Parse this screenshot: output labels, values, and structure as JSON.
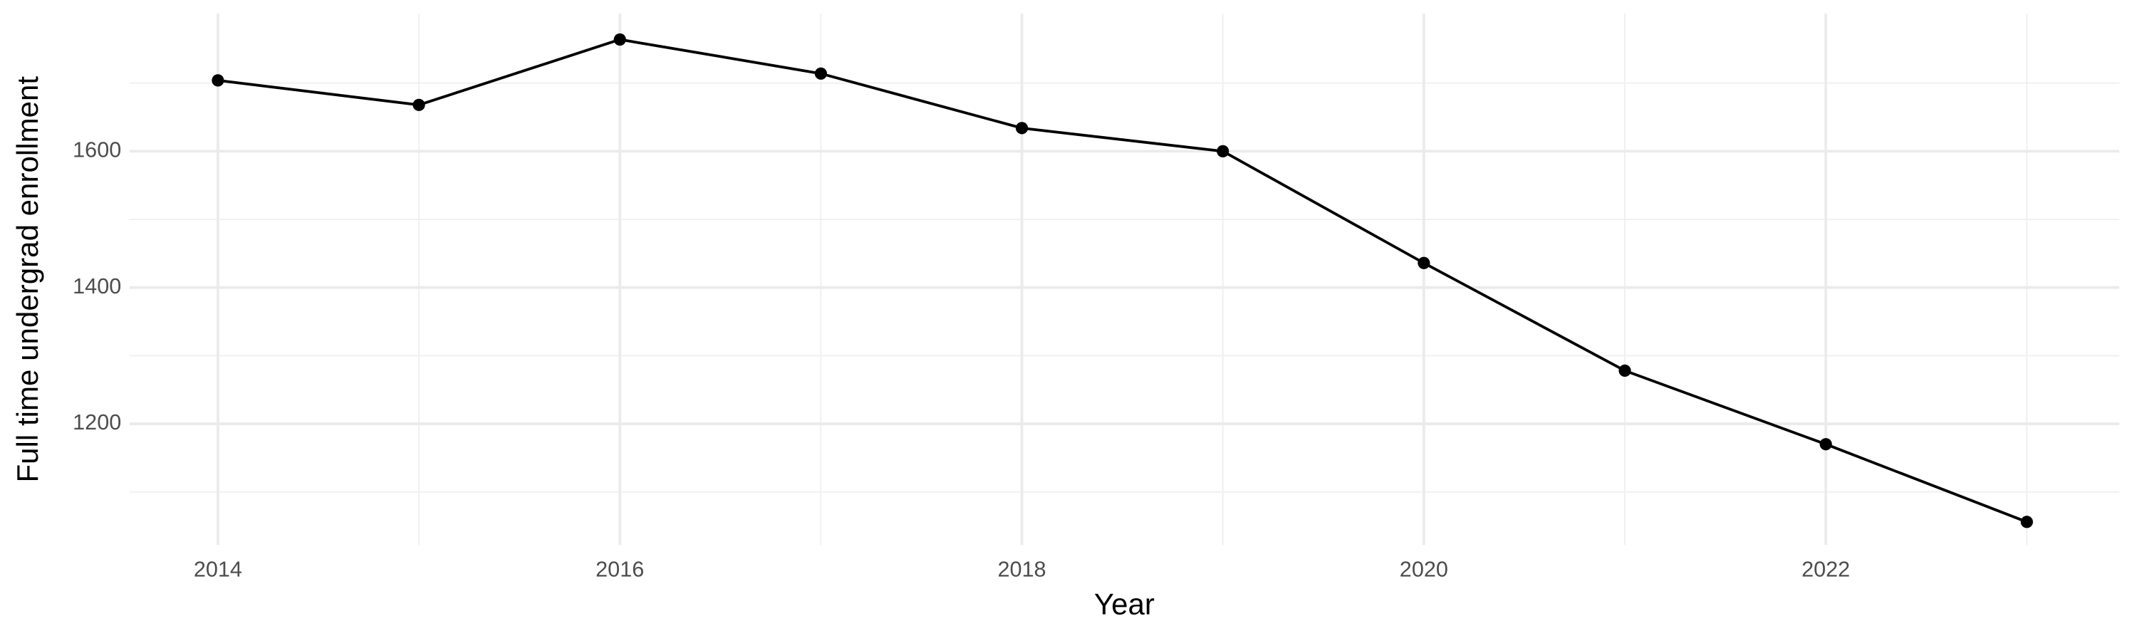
{
  "chart_data": {
    "type": "line",
    "x_label": "Year",
    "y_label": "Full time undergrad enrollment",
    "x": [
      2014,
      2015,
      2016,
      2017,
      2018,
      2019,
      2020,
      2021,
      2022,
      2023
    ],
    "series": [
      {
        "name": "Full time undergrad enrollment",
        "color": "#000000",
        "values": [
          1704,
          1668,
          1764,
          1714,
          1634,
          1600,
          1436,
          1278,
          1170,
          1056
        ]
      }
    ],
    "xlim": [
      2013.56,
      2023.46
    ],
    "xticks": [
      2014,
      2016,
      2018,
      2020,
      2022
    ],
    "ylim": [
      1022,
      1802
    ],
    "yticks": [
      1200,
      1400,
      1600
    ],
    "grid": true
  }
}
